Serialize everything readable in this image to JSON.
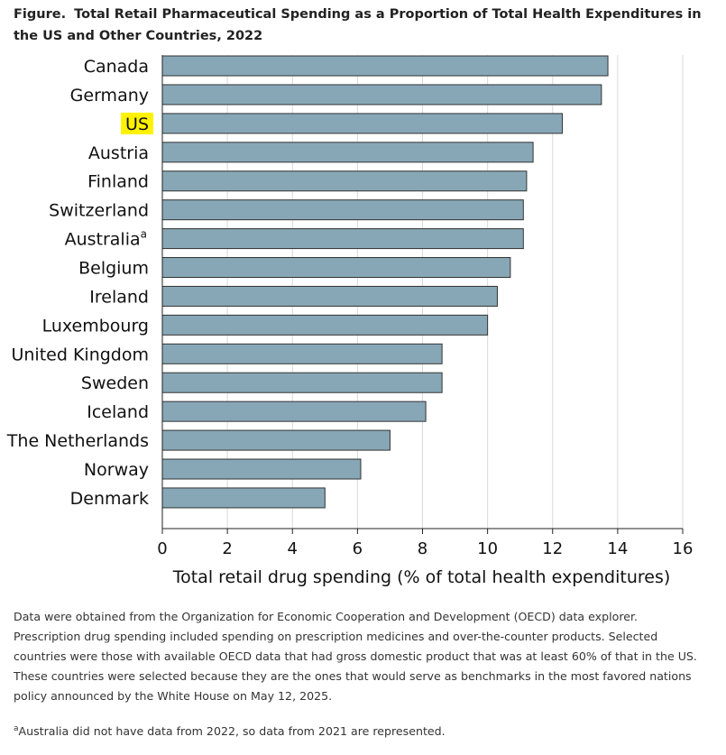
{
  "figure": {
    "label": "Figure.",
    "title": "Total Retail Pharmaceutical Spending as a Proportion of Total Health Expenditures in the US and Other Countries, 2022"
  },
  "chart_data": {
    "type": "bar",
    "orientation": "horizontal",
    "categories": [
      "Canada",
      "Germany",
      "US",
      "Austria",
      "Finland",
      "Switzerland",
      "Australia",
      "Belgium",
      "Ireland",
      "Luxembourg",
      "United Kingdom",
      "Sweden",
      "Iceland",
      "The Netherlands",
      "Norway",
      "Denmark"
    ],
    "category_superscripts": {
      "Australia": "a"
    },
    "highlighted_category": "US",
    "values": [
      13.7,
      13.5,
      12.3,
      11.4,
      11.2,
      11.1,
      11.1,
      10.7,
      10.3,
      10.0,
      8.6,
      8.6,
      8.1,
      7.0,
      6.1,
      5.0
    ],
    "xlim": [
      0,
      16
    ],
    "xticks": [
      0,
      2,
      4,
      6,
      8,
      10,
      12,
      14,
      16
    ],
    "xlabel": "Total retail drug spending (% of total health expenditures)",
    "ylabel": "",
    "grid": "vertical",
    "bar_color": "#87a7b6",
    "bar_edge_color": "#333333",
    "highlight_color": "#fff200"
  },
  "notes": {
    "main": "Data were obtained from the Organization for Economic Cooperation and Development (OECD) data explorer. Prescription drug spending included spending on prescription medicines and over-the-counter products. Selected countries were those with available OECD data that had gross domestic product that was at least 60% of that in the US. These countries were selected because they are the ones that would serve as benchmarks in the most favored nations policy announced by the White House on May 12, 2025.",
    "footnote_marker": "a",
    "footnote": "Australia did not have data from 2022, so data from 2021 are represented."
  }
}
